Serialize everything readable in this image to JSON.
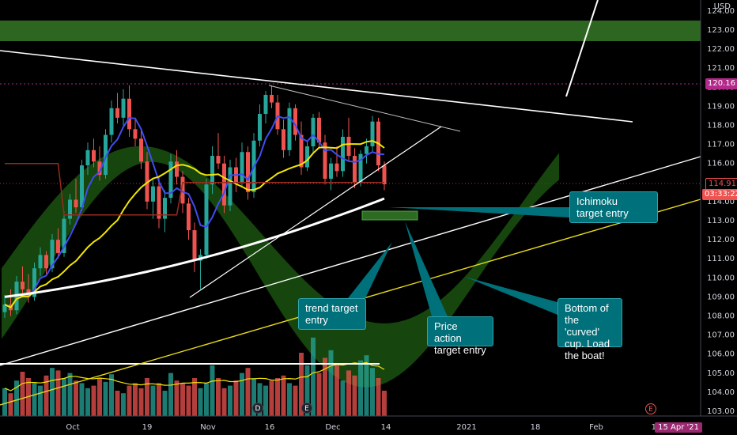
{
  "chart_data": {
    "type": "candlestick",
    "currency": "USD",
    "y_ticks": [
      "124.00",
      "123.00",
      "122.00",
      "121.00",
      "120.00",
      "119.00",
      "118.00",
      "117.00",
      "116.00",
      "115.00",
      "114.00",
      "113.00",
      "112.00",
      "111.00",
      "110.00",
      "109.00",
      "108.00",
      "107.00",
      "106.00",
      "105.00",
      "104.00",
      "103.00"
    ],
    "x_ticks": [
      "Oct",
      "19",
      "Nov",
      "16",
      "Dec",
      "14",
      "2021",
      "18",
      "Feb",
      "15"
    ],
    "price_tags": {
      "resistance_level": "120.16",
      "last_price": "114.91",
      "countdown": "03:33:22",
      "date_marker": "15 Apr '21"
    },
    "event_markers": [
      "D",
      "E",
      "E"
    ],
    "candles": [
      [
        108.2,
        109.1,
        107.9,
        108.6
      ],
      [
        108.6,
        109.4,
        108.0,
        108.3
      ],
      [
        108.3,
        110.1,
        108.1,
        109.8
      ],
      [
        109.8,
        110.6,
        109.2,
        109.4
      ],
      [
        109.4,
        110.2,
        108.7,
        109.0
      ],
      [
        109.0,
        110.8,
        108.8,
        110.5
      ],
      [
        110.5,
        111.6,
        110.1,
        111.2
      ],
      [
        111.2,
        111.4,
        110.2,
        110.5
      ],
      [
        110.5,
        112.3,
        110.3,
        112.0
      ],
      [
        112.0,
        112.6,
        111.0,
        111.3
      ],
      [
        111.3,
        113.5,
        111.1,
        113.1
      ],
      [
        113.1,
        114.4,
        112.8,
        114.1
      ],
      [
        114.1,
        115.2,
        113.4,
        113.7
      ],
      [
        113.7,
        116.2,
        113.5,
        115.9
      ],
      [
        115.9,
        117.1,
        115.4,
        116.7
      ],
      [
        116.7,
        117.3,
        115.8,
        116.1
      ],
      [
        116.1,
        116.9,
        115.1,
        115.4
      ],
      [
        115.4,
        117.8,
        115.2,
        117.5
      ],
      [
        117.5,
        119.3,
        117.1,
        118.9
      ],
      [
        118.9,
        119.7,
        118.1,
        118.4
      ],
      [
        118.4,
        119.9,
        118.0,
        119.4
      ],
      [
        119.4,
        120.1,
        117.4,
        117.8
      ],
      [
        117.8,
        118.4,
        116.9,
        117.3
      ],
      [
        117.3,
        117.8,
        115.7,
        116.1
      ],
      [
        116.1,
        116.6,
        113.6,
        114.0
      ],
      [
        114.0,
        115.2,
        113.1,
        114.8
      ],
      [
        114.8,
        115.3,
        112.6,
        113.1
      ],
      [
        113.1,
        114.6,
        112.4,
        114.2
      ],
      [
        114.2,
        116.5,
        113.9,
        116.1
      ],
      [
        116.1,
        116.7,
        114.9,
        115.3
      ],
      [
        115.3,
        115.6,
        113.4,
        113.9
      ],
      [
        113.9,
        114.2,
        112.0,
        112.5
      ],
      [
        112.5,
        112.9,
        110.3,
        110.9
      ],
      [
        110.9,
        111.5,
        109.4,
        111.2
      ],
      [
        111.2,
        115.2,
        111.0,
        114.9
      ],
      [
        114.9,
        116.9,
        114.4,
        116.4
      ],
      [
        116.4,
        117.6,
        115.7,
        116.0
      ],
      [
        116.0,
        116.4,
        113.4,
        113.8
      ],
      [
        113.8,
        116.2,
        113.5,
        115.8
      ],
      [
        115.8,
        116.3,
        114.5,
        115.0
      ],
      [
        115.0,
        117.1,
        114.8,
        116.6
      ],
      [
        116.6,
        116.9,
        114.1,
        114.5
      ],
      [
        114.5,
        117.6,
        114.2,
        117.2
      ],
      [
        117.2,
        119.1,
        116.9,
        118.6
      ],
      [
        118.6,
        119.8,
        118.1,
        119.6
      ],
      [
        119.6,
        120.1,
        118.9,
        119.2
      ],
      [
        119.2,
        119.6,
        117.5,
        117.8
      ],
      [
        117.8,
        118.3,
        116.3,
        116.7
      ],
      [
        116.7,
        119.2,
        116.4,
        118.9
      ],
      [
        118.9,
        119.1,
        117.2,
        117.5
      ],
      [
        117.5,
        118.2,
        115.4,
        115.8
      ],
      [
        115.8,
        117.2,
        115.6,
        116.9
      ],
      [
        116.9,
        118.6,
        116.5,
        118.4
      ],
      [
        118.4,
        118.7,
        116.8,
        117.1
      ],
      [
        117.1,
        117.5,
        114.9,
        115.2
      ],
      [
        115.2,
        116.3,
        114.6,
        116.0
      ],
      [
        116.0,
        116.9,
        115.3,
        115.6
      ],
      [
        115.6,
        117.8,
        115.3,
        117.4
      ],
      [
        117.4,
        118.4,
        116.1,
        116.4
      ],
      [
        116.4,
        116.8,
        114.7,
        115.0
      ],
      [
        115.0,
        116.7,
        114.8,
        116.5
      ],
      [
        116.5,
        117.3,
        116.0,
        116.9
      ],
      [
        116.9,
        118.5,
        116.6,
        118.2
      ],
      [
        118.2,
        118.4,
        115.6,
        115.9
      ],
      [
        115.9,
        116.1,
        114.6,
        114.91
      ]
    ],
    "volume": [
      22,
      18,
      28,
      35,
      30,
      26,
      24,
      32,
      38,
      36,
      30,
      34,
      28,
      26,
      22,
      24,
      30,
      27,
      33,
      20,
      18,
      24,
      26,
      22,
      30,
      24,
      26,
      20,
      34,
      28,
      26,
      24,
      30,
      22,
      26,
      40,
      30,
      22,
      24,
      28,
      34,
      38,
      30,
      26,
      24,
      28,
      30,
      32,
      26,
      24,
      50,
      40,
      62,
      34,
      46,
      52,
      40,
      28,
      36,
      32,
      44,
      48,
      38,
      30,
      20
    ]
  },
  "annotations": [
    {
      "text": "Ichimoku\ntarget entry"
    },
    {
      "text": "trend target\nentry"
    },
    {
      "text": "Price action\ntarget entry"
    },
    {
      "text": "Bottom of\nthe 'curved'\ncup. Load\nthe boat!"
    }
  ],
  "colors": {
    "up": "#26a69a",
    "down": "#ef5350",
    "zone": "#2e6b22",
    "callout": "#00707a",
    "sma_fast": "#3f4df2",
    "sma_mid": "#f2e600",
    "sma_slow": "#ffffff",
    "kijun": "#9a2a1e",
    "level": "#b5288c",
    "trendline_yellow": "#e6d81c"
  }
}
